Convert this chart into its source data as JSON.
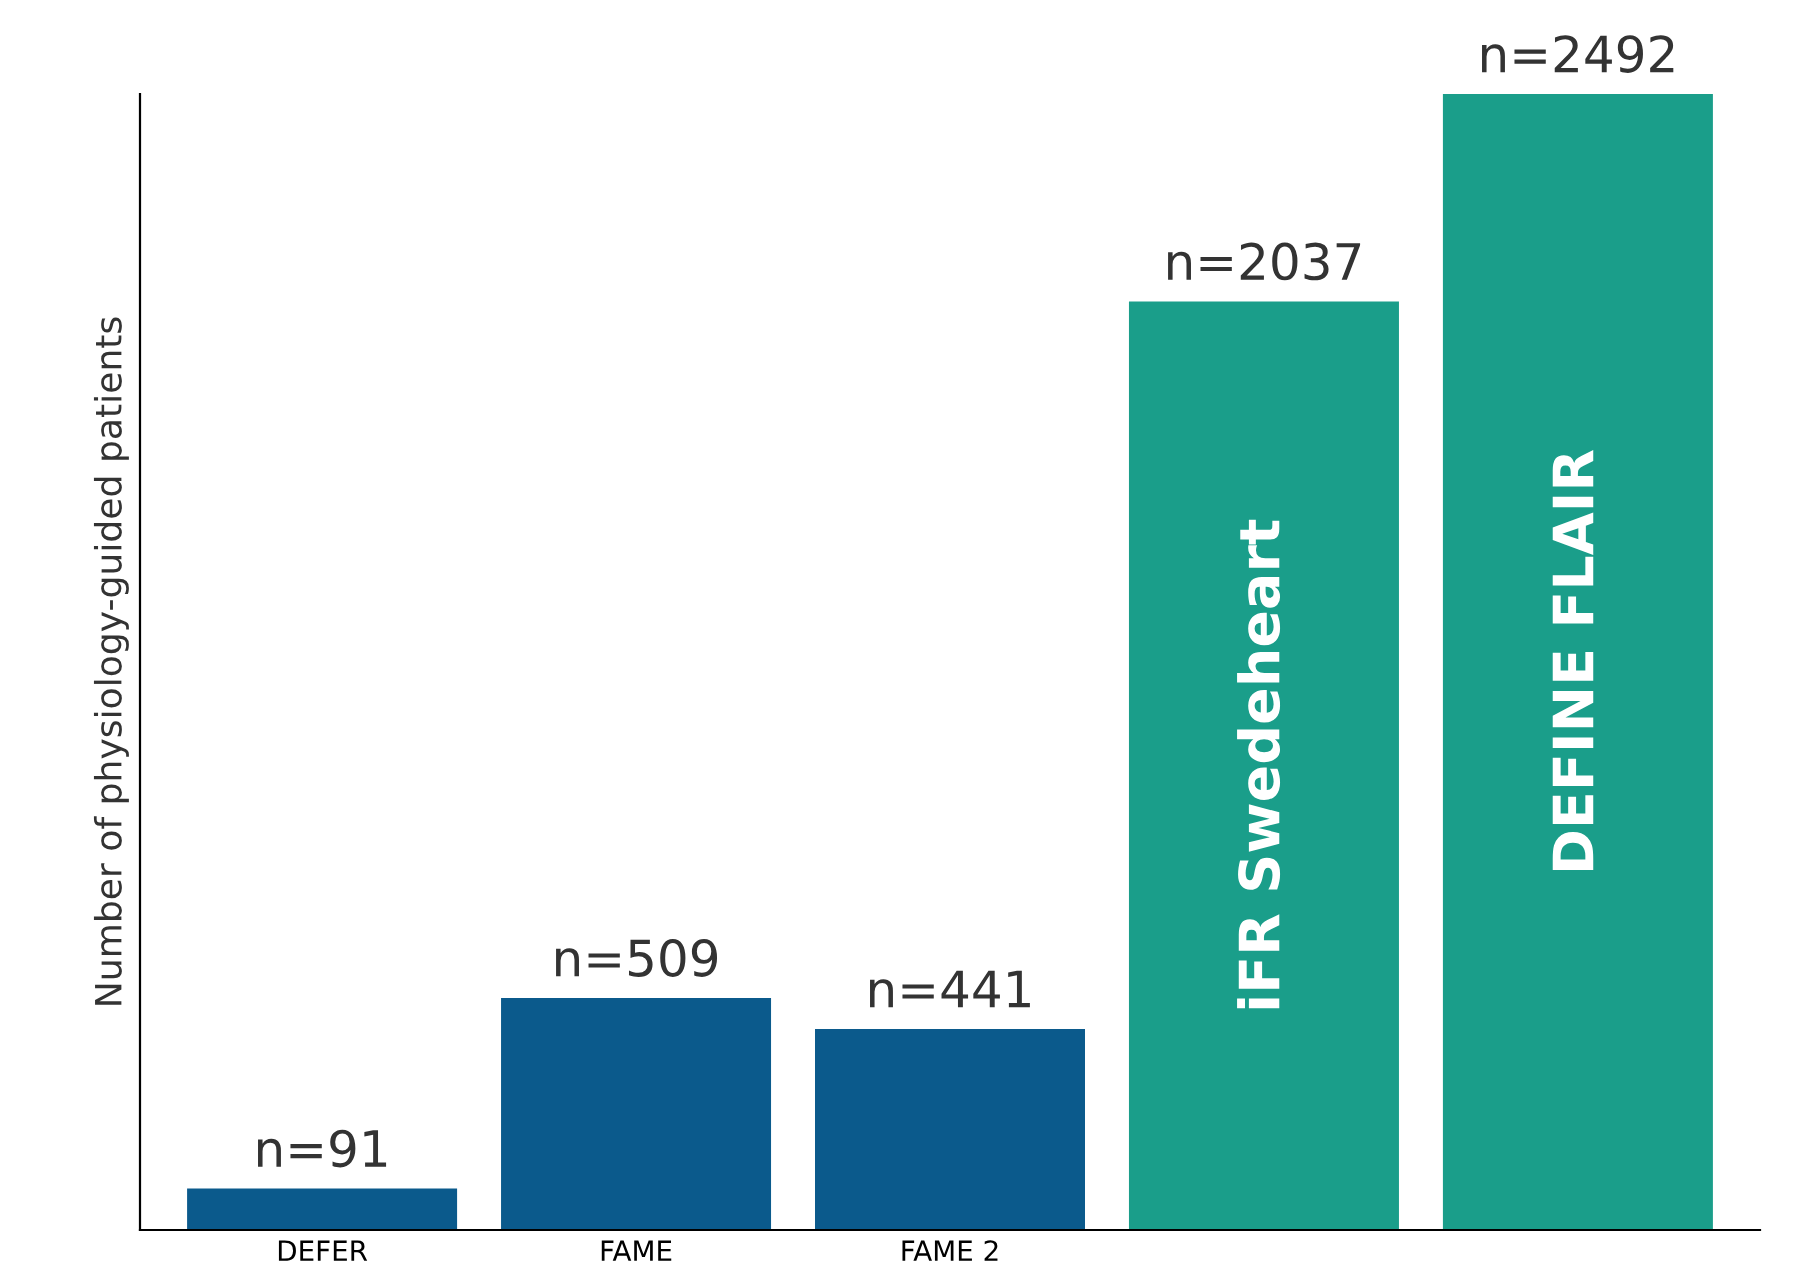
{
  "chart_data": {
    "type": "bar",
    "ylabel": "Number of physiology-guided patients",
    "categories": [
      "DEFER",
      "FAME",
      "FAME 2",
      "iFR Swedeheart",
      "DEFINE FLAIR"
    ],
    "series": [
      {
        "color": "#0b5a8c",
        "values": [
          91,
          509,
          441,
          null,
          null
        ],
        "value_labels": [
          "n=91",
          "n=509",
          "n=441",
          null,
          null
        ]
      },
      {
        "color": "#1a9e8a",
        "values": [
          null,
          null,
          null,
          2037,
          2492
        ],
        "value_labels": [
          null,
          null,
          null,
          "n=2037",
          "n=2492"
        ]
      }
    ],
    "ylim": [
      0,
      2492
    ],
    "tick_labels": "x",
    "grid": false,
    "legend": false
  }
}
